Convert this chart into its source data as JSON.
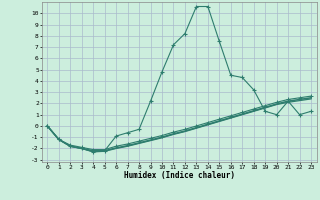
{
  "xlabel": "Humidex (Indice chaleur)",
  "bg_color": "#cceedd",
  "grid_color": "#aabbcc",
  "line_color": "#2e7d6e",
  "xlim": [
    -0.5,
    23.5
  ],
  "ylim": [
    -3.2,
    11
  ],
  "xticks": [
    0,
    1,
    2,
    3,
    4,
    5,
    6,
    7,
    8,
    9,
    10,
    11,
    12,
    13,
    14,
    15,
    16,
    17,
    18,
    19,
    20,
    21,
    22,
    23
  ],
  "yticks": [
    -3,
    -2,
    -1,
    0,
    1,
    2,
    3,
    4,
    5,
    6,
    7,
    8,
    9,
    10
  ],
  "series": [
    {
      "x": [
        0,
        1,
        2,
        3,
        4,
        5,
        6,
        7,
        8,
        9,
        10,
        11,
        12,
        13,
        14,
        15,
        16,
        17,
        18,
        19,
        20,
        21,
        22,
        23
      ],
      "y": [
        0.0,
        -1.2,
        -1.8,
        -2.0,
        -2.3,
        -2.2,
        -0.9,
        -0.6,
        -0.3,
        2.2,
        4.8,
        7.2,
        8.2,
        10.6,
        10.6,
        7.5,
        4.5,
        4.3,
        3.2,
        1.3,
        1.0,
        2.2,
        1.0,
        1.3
      ],
      "marker": "+",
      "markersize": 3,
      "linewidth": 0.8,
      "markeredgewidth": 0.8
    },
    {
      "x": [
        0,
        1,
        2,
        3,
        4,
        5,
        6,
        7,
        8,
        9,
        10,
        11,
        12,
        13,
        14,
        15,
        16,
        17,
        18,
        19,
        20,
        21,
        22,
        23
      ],
      "y": [
        0.0,
        -1.2,
        -1.8,
        -2.0,
        -2.3,
        -2.25,
        -2.0,
        -1.8,
        -1.55,
        -1.3,
        -1.05,
        -0.75,
        -0.5,
        -0.2,
        0.1,
        0.4,
        0.7,
        1.0,
        1.3,
        1.6,
        1.9,
        2.1,
        2.25,
        2.4
      ],
      "marker": null,
      "markersize": 0,
      "linewidth": 0.9,
      "markeredgewidth": 0
    },
    {
      "x": [
        0,
        1,
        2,
        3,
        4,
        5,
        6,
        7,
        8,
        9,
        10,
        11,
        12,
        13,
        14,
        15,
        16,
        17,
        18,
        19,
        20,
        21,
        22,
        23
      ],
      "y": [
        0.0,
        -1.2,
        -1.8,
        -2.0,
        -2.2,
        -2.2,
        -1.95,
        -1.75,
        -1.5,
        -1.25,
        -1.0,
        -0.7,
        -0.45,
        -0.15,
        0.15,
        0.45,
        0.75,
        1.05,
        1.35,
        1.65,
        1.95,
        2.2,
        2.35,
        2.5
      ],
      "marker": null,
      "markersize": 0,
      "linewidth": 1.1,
      "markeredgewidth": 0
    },
    {
      "x": [
        0,
        1,
        2,
        3,
        4,
        5,
        6,
        7,
        8,
        9,
        10,
        11,
        12,
        13,
        14,
        15,
        16,
        17,
        18,
        19,
        20,
        21,
        22,
        23
      ],
      "y": [
        0.0,
        -1.2,
        -1.7,
        -1.9,
        -2.1,
        -2.1,
        -1.8,
        -1.6,
        -1.35,
        -1.1,
        -0.85,
        -0.55,
        -0.3,
        0.0,
        0.3,
        0.6,
        0.9,
        1.2,
        1.5,
        1.8,
        2.1,
        2.35,
        2.5,
        2.65
      ],
      "marker": "+",
      "markersize": 2.5,
      "linewidth": 0.8,
      "markeredgewidth": 0.7
    }
  ]
}
